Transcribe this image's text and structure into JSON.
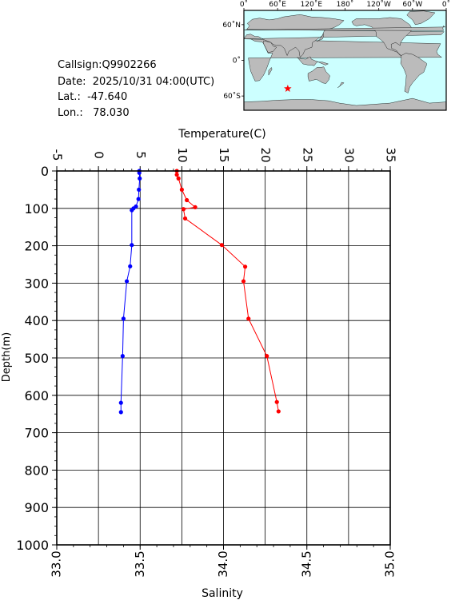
{
  "info": {
    "callsign": "Callsign:Q9902266",
    "date": "Date:  2025/10/31 04:00(UTC)",
    "lat": "Lat.:  -47.640",
    "lon": "Lon.:   78.030"
  },
  "map": {
    "lon_labels": [
      "0˚",
      "60˚E",
      "120˚E",
      "180˚",
      "120˚W",
      "60˚W",
      "0˚"
    ],
    "lat_labels": [
      "60˚N",
      "0˚",
      "60˚S"
    ],
    "marker": {
      "lon": 78.03,
      "lat": -47.64
    },
    "ocean_color": "#ccffff",
    "land_color": "#bbbbbb",
    "marker_color": "#ff0000"
  },
  "chart_data": {
    "type": "line",
    "top_axis_label": "Temperature(C)",
    "bottom_axis_label": "Salinity",
    "y_axis_label": "Depth(m)",
    "temperature_ticks": [
      "-5",
      "0",
      "5",
      "10",
      "15",
      "20",
      "25",
      "30",
      "35"
    ],
    "salinity_ticks": [
      "33.0",
      "33.5",
      "34.0",
      "34.5",
      "35.0"
    ],
    "depth_ticks": [
      "0",
      "100",
      "200",
      "300",
      "400",
      "500",
      "600",
      "700",
      "800",
      "900",
      "1000"
    ],
    "temperature_range": [
      -5,
      35
    ],
    "salinity_range": [
      33.0,
      35.0
    ],
    "depth_range": [
      0,
      1000
    ],
    "series": [
      {
        "axis": "temperature",
        "color": "#0000ff",
        "points": [
          {
            "depth": 0,
            "value": 4.9
          },
          {
            "depth": 5,
            "value": 4.9
          },
          {
            "depth": 20,
            "value": 4.95
          },
          {
            "depth": 50,
            "value": 4.85
          },
          {
            "depth": 75,
            "value": 4.8
          },
          {
            "depth": 95,
            "value": 4.5
          },
          {
            "depth": 100,
            "value": 4.2
          },
          {
            "depth": 105,
            "value": 4.0
          },
          {
            "depth": 198,
            "value": 4.0
          },
          {
            "depth": 255,
            "value": 3.8
          },
          {
            "depth": 295,
            "value": 3.4
          },
          {
            "depth": 395,
            "value": 3.0
          },
          {
            "depth": 495,
            "value": 2.9
          },
          {
            "depth": 620,
            "value": 2.7
          },
          {
            "depth": 645,
            "value": 2.7
          }
        ]
      },
      {
        "axis": "salinity",
        "color": "#ff0000",
        "points": [
          {
            "depth": 0,
            "value": 33.72
          },
          {
            "depth": 10,
            "value": 33.72
          },
          {
            "depth": 20,
            "value": 33.73
          },
          {
            "depth": 50,
            "value": 33.75
          },
          {
            "depth": 78,
            "value": 33.78
          },
          {
            "depth": 97,
            "value": 33.83
          },
          {
            "depth": 102,
            "value": 33.76
          },
          {
            "depth": 127,
            "value": 33.77
          },
          {
            "depth": 198,
            "value": 33.99
          },
          {
            "depth": 256,
            "value": 34.13
          },
          {
            "depth": 295,
            "value": 34.12
          },
          {
            "depth": 395,
            "value": 34.15
          },
          {
            "depth": 495,
            "value": 34.26
          },
          {
            "depth": 618,
            "value": 34.32
          },
          {
            "depth": 643,
            "value": 34.33
          }
        ]
      }
    ]
  }
}
